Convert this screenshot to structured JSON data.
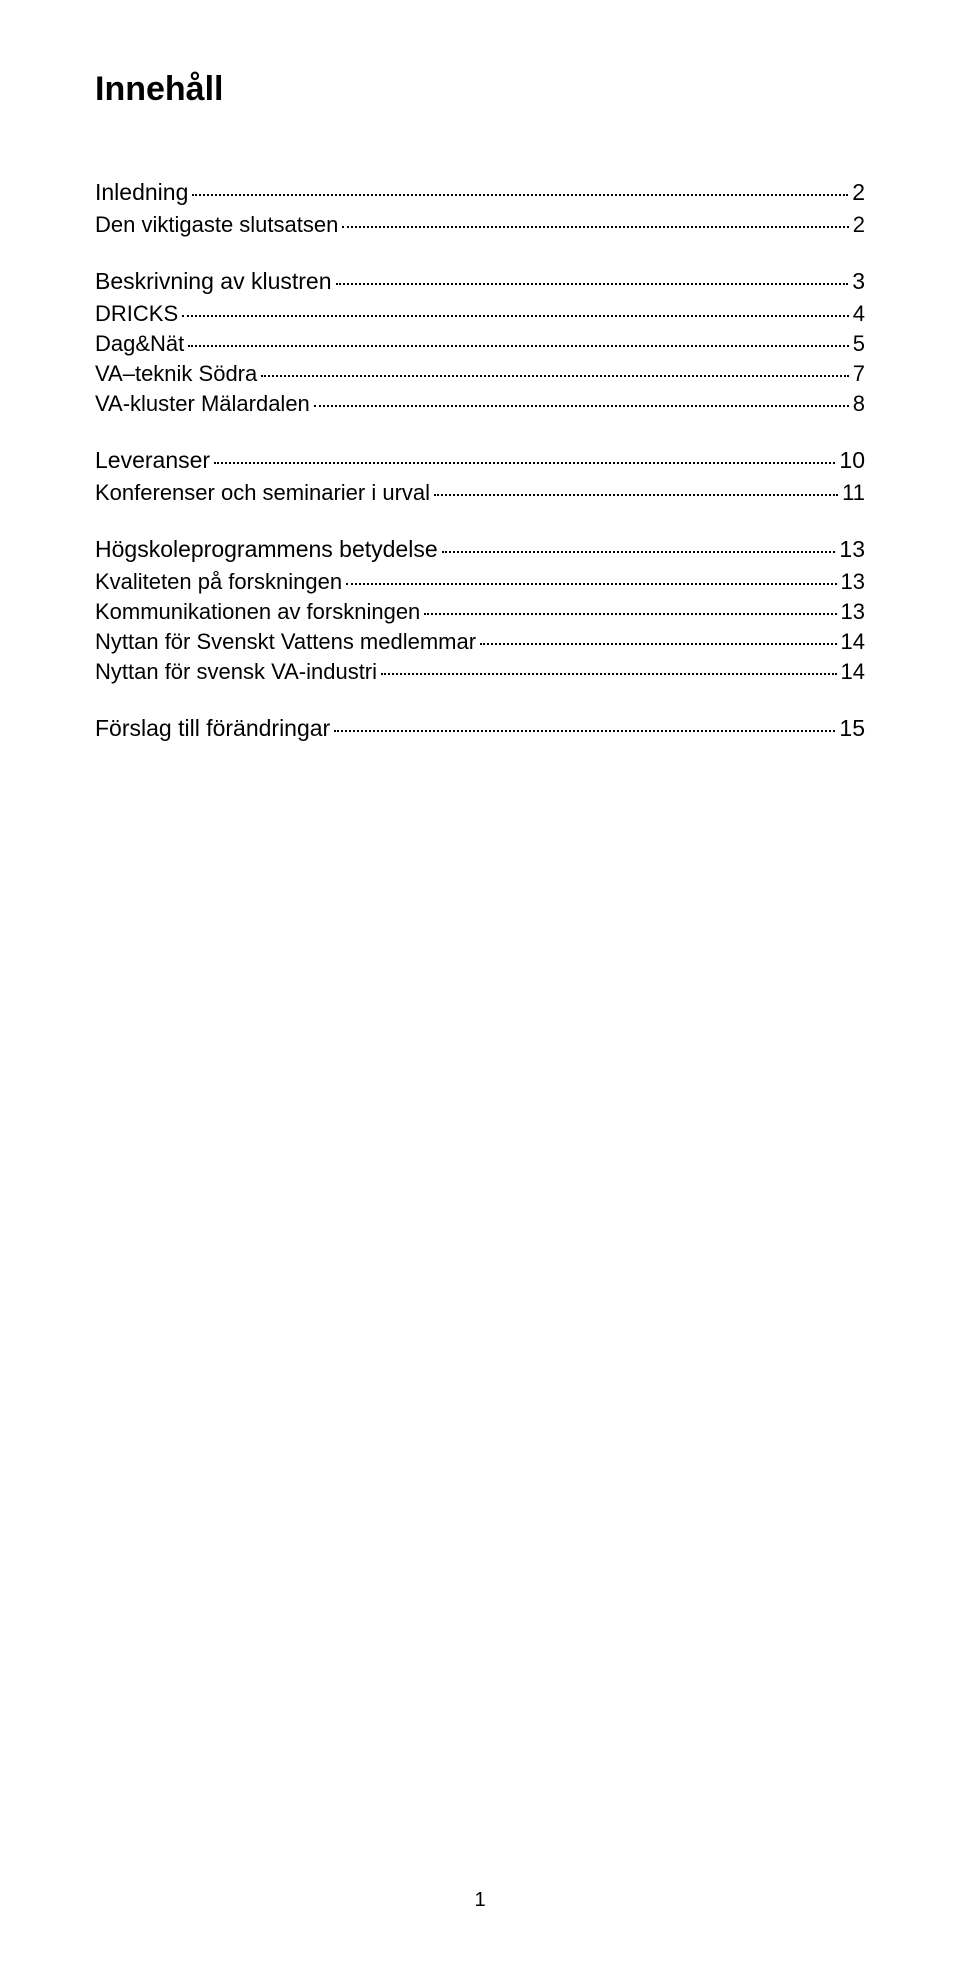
{
  "title": "Innehåll",
  "page_number": "1",
  "entries": [
    {
      "level": 1,
      "label": "Inledning",
      "page": "2"
    },
    {
      "level": 2,
      "label": "Den viktigaste slutsatsen",
      "page": "2"
    },
    {
      "level": 1,
      "label": "Beskrivning av klustren",
      "page": "3"
    },
    {
      "level": 2,
      "label": "DRICKS",
      "page": "4"
    },
    {
      "level": 2,
      "label": "Dag&Nät",
      "page": "5"
    },
    {
      "level": 2,
      "label": "VA–teknik Södra",
      "page": "7"
    },
    {
      "level": 2,
      "label": "VA-kluster Mälardalen",
      "page": "8"
    },
    {
      "level": 1,
      "label": "Leveranser",
      "page": "10"
    },
    {
      "level": 2,
      "label": "Konferenser och seminarier i urval",
      "page": "11"
    },
    {
      "level": 1,
      "label": "Högskoleprogrammens betydelse",
      "page": "13"
    },
    {
      "level": 2,
      "label": "Kvaliteten på forskningen",
      "page": "13"
    },
    {
      "level": 2,
      "label": "Kommunikationen av forskningen",
      "page": "13"
    },
    {
      "level": 2,
      "label": "Nyttan för Svenskt Vattens medlemmar",
      "page": "14"
    },
    {
      "level": 2,
      "label": "Nyttan för svensk VA-industri",
      "page": "14"
    },
    {
      "level": 1,
      "label": "Förslag till förändringar",
      "page": "15"
    }
  ],
  "colors": {
    "text": "#000000",
    "background": "#ffffff"
  },
  "typography": {
    "title_size_pt": 26,
    "lvl1_size_pt": 17,
    "lvl2_size_pt": 16,
    "font_family": "Helvetica Neue, Arial, sans-serif"
  }
}
